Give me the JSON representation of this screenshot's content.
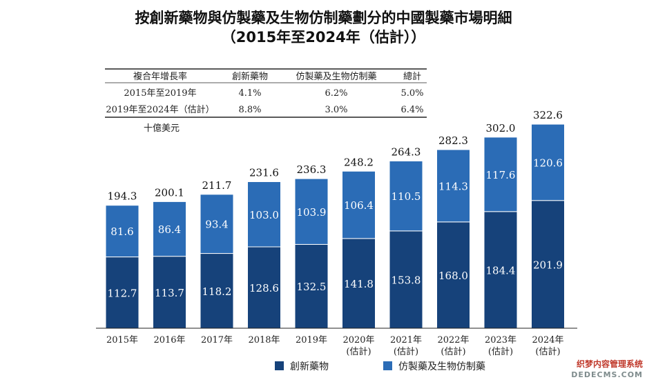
{
  "title_line1": "按創新藥物與仿製藥及生物仿制藥劃分的中國製藥市場明細",
  "title_line2": "（2015年至2024年（估計））",
  "unit": "十億美元",
  "cagr_table": {
    "headers": [
      "複合年增長率",
      "創新藥物",
      "仿製藥及生物仿制藥",
      "總計"
    ],
    "rows": [
      [
        "2015年至2019年",
        "4.1%",
        "6.2%",
        "5.0%"
      ],
      [
        "2019年至2024年（估計）",
        "8.8%",
        "3.0%",
        "6.4%"
      ]
    ]
  },
  "colors": {
    "innovative": "#16427a",
    "generic": "#2b6cb6"
  },
  "watermark": {
    "line1": "织梦内容管理系统",
    "line2": "DEDECMS.COM"
  },
  "chart_data": {
    "type": "bar",
    "stacked": true,
    "categories": [
      "2015年",
      "2016年",
      "2017年",
      "2018年",
      "2019年",
      "2020年",
      "2021年",
      "2022年",
      "2023年",
      "2024年"
    ],
    "category_sublabels": [
      "",
      "",
      "",
      "",
      "",
      "(估計)",
      "(估計)",
      "(估計)",
      "(估計)",
      "(估計)"
    ],
    "series": [
      {
        "name": "創新藥物",
        "values": [
          112.7,
          113.7,
          118.2,
          128.6,
          132.5,
          141.8,
          153.8,
          168.0,
          184.4,
          201.9
        ]
      },
      {
        "name": "仿製藥及生物仿制藥",
        "values": [
          81.6,
          86.4,
          93.4,
          103.0,
          103.9,
          106.4,
          110.5,
          114.3,
          117.6,
          120.6
        ]
      }
    ],
    "totals": [
      194.3,
      200.1,
      211.7,
      231.6,
      236.3,
      248.2,
      264.3,
      282.3,
      302.0,
      322.6
    ],
    "ylim": [
      0,
      322.6
    ],
    "grid": false,
    "legend_position": "bottom"
  }
}
